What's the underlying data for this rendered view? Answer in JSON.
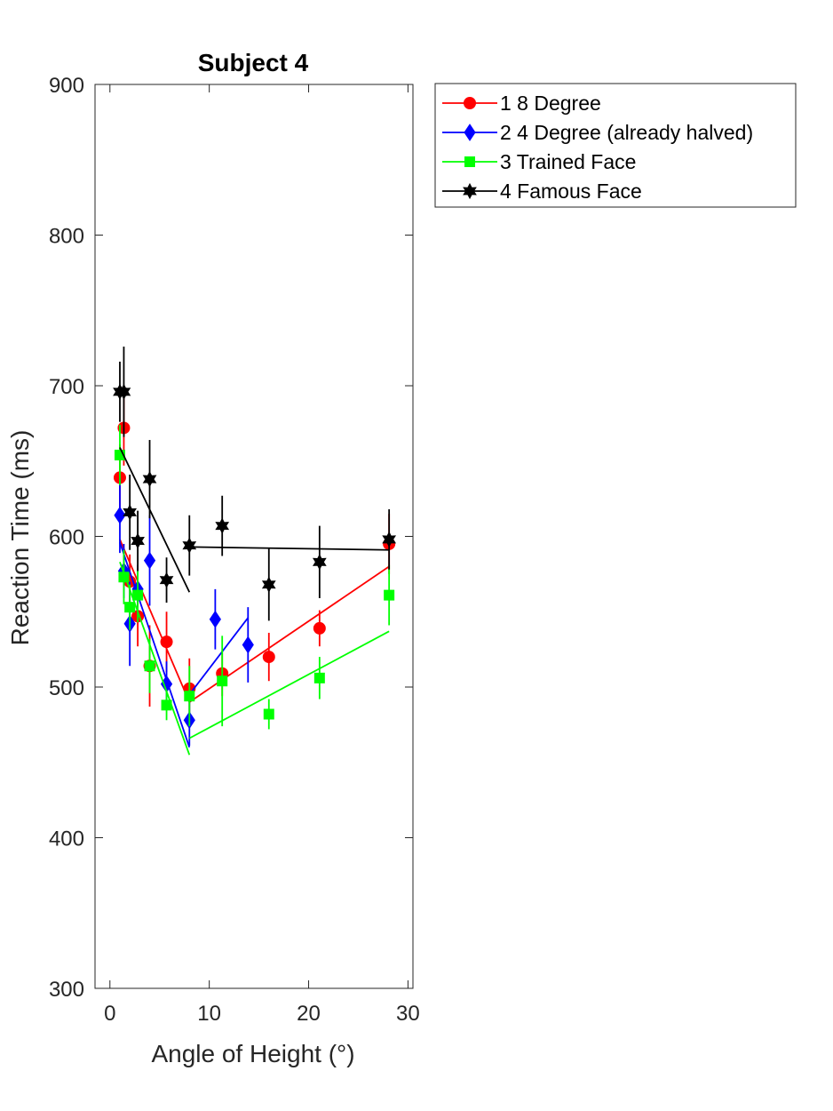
{
  "chart_data": {
    "type": "line",
    "title": "Subject 4",
    "xlabel": "Angle of Height (°)",
    "ylabel": "Reaction Time (ms)",
    "xlim": [
      -1.5,
      30.5
    ],
    "ylim": [
      300,
      900
    ],
    "xticks": [
      0,
      10,
      20,
      30
    ],
    "yticks": [
      300,
      400,
      500,
      600,
      700,
      800,
      900
    ],
    "grid": false,
    "legend_position": "outside-top-right",
    "series": [
      {
        "name": "1 8 Degree",
        "color": "#ff0000",
        "marker": "circle",
        "points": [
          {
            "x": 1.0,
            "y": 639,
            "err": 22
          },
          {
            "x": 1.4,
            "y": 672,
            "err": 25
          },
          {
            "x": 2.0,
            "y": 570,
            "err": 18
          },
          {
            "x": 2.8,
            "y": 547,
            "err": 20
          },
          {
            "x": 4.0,
            "y": 514,
            "err": 27
          },
          {
            "x": 5.7,
            "y": 530,
            "err": 20
          },
          {
            "x": 8.0,
            "y": 499,
            "err": 20
          },
          {
            "x": 11.3,
            "y": 509,
            "err": 15
          },
          {
            "x": 16.0,
            "y": 520,
            "err": 16
          },
          {
            "x": 21.1,
            "y": 539,
            "err": 12
          },
          {
            "x": 28.1,
            "y": 595,
            "err": 20
          }
        ],
        "fit_segments": [
          [
            {
              "x": 1.0,
              "y": 598
            },
            {
              "x": 8.0,
              "y": 490
            }
          ],
          [
            {
              "x": 8.0,
              "y": 490
            },
            {
              "x": 28.1,
              "y": 580
            }
          ]
        ]
      },
      {
        "name": "2 4 Degree (already halved)",
        "color": "#0000ff",
        "marker": "diamond",
        "points": [
          {
            "x": 1.0,
            "y": 614,
            "err": 25
          },
          {
            "x": 1.4,
            "y": 577,
            "err": 18
          },
          {
            "x": 2.0,
            "y": 542,
            "err": 28
          },
          {
            "x": 2.8,
            "y": 565,
            "err": 16
          },
          {
            "x": 4.0,
            "y": 584,
            "err": 30
          },
          {
            "x": 5.7,
            "y": 502,
            "err": 15
          },
          {
            "x": 8.0,
            "y": 478,
            "err": 17
          },
          {
            "x": 10.6,
            "y": 545,
            "err": 20
          },
          {
            "x": 13.9,
            "y": 528,
            "err": 25
          }
        ],
        "fit_segments": [
          [
            {
              "x": 1.0,
              "y": 596
            },
            {
              "x": 8.0,
              "y": 460
            }
          ],
          [
            {
              "x": 8.0,
              "y": 495
            },
            {
              "x": 13.9,
              "y": 546
            }
          ]
        ]
      },
      {
        "name": "3 Trained Face",
        "color": "#00ff00",
        "marker": "square",
        "points": [
          {
            "x": 1.0,
            "y": 654,
            "err": 20
          },
          {
            "x": 1.4,
            "y": 573,
            "err": 18
          },
          {
            "x": 2.0,
            "y": 553,
            "err": 15
          },
          {
            "x": 2.8,
            "y": 561,
            "err": 18
          },
          {
            "x": 4.0,
            "y": 514,
            "err": 18
          },
          {
            "x": 5.7,
            "y": 488,
            "err": 10
          },
          {
            "x": 8.0,
            "y": 494,
            "err": 20
          },
          {
            "x": 11.3,
            "y": 504,
            "err": 30
          },
          {
            "x": 16.0,
            "y": 482,
            "err": 10
          },
          {
            "x": 21.1,
            "y": 506,
            "err": 14
          },
          {
            "x": 28.1,
            "y": 561,
            "err": 20
          }
        ],
        "fit_segments": [
          [
            {
              "x": 1.0,
              "y": 583
            },
            {
              "x": 8.0,
              "y": 455
            }
          ],
          [
            {
              "x": 8.0,
              "y": 466
            },
            {
              "x": 28.1,
              "y": 537
            }
          ]
        ]
      },
      {
        "name": "4 Famous Face",
        "color": "#000000",
        "marker": "hexagram",
        "points": [
          {
            "x": 1.0,
            "y": 696,
            "err": 20
          },
          {
            "x": 1.4,
            "y": 696,
            "err": 30
          },
          {
            "x": 2.0,
            "y": 616,
            "err": 25
          },
          {
            "x": 2.8,
            "y": 597,
            "err": 20
          },
          {
            "x": 4.0,
            "y": 638,
            "err": 26
          },
          {
            "x": 5.7,
            "y": 571,
            "err": 15
          },
          {
            "x": 8.0,
            "y": 594,
            "err": 20
          },
          {
            "x": 11.3,
            "y": 607,
            "err": 20
          },
          {
            "x": 16.0,
            "y": 568,
            "err": 24
          },
          {
            "x": 21.1,
            "y": 583,
            "err": 24
          },
          {
            "x": 28.1,
            "y": 598,
            "err": 20
          }
        ],
        "fit_segments": [
          [
            {
              "x": 1.0,
              "y": 659
            },
            {
              "x": 8.0,
              "y": 563
            }
          ],
          [
            {
              "x": 8.0,
              "y": 593
            },
            {
              "x": 28.1,
              "y": 591
            }
          ]
        ]
      }
    ]
  }
}
